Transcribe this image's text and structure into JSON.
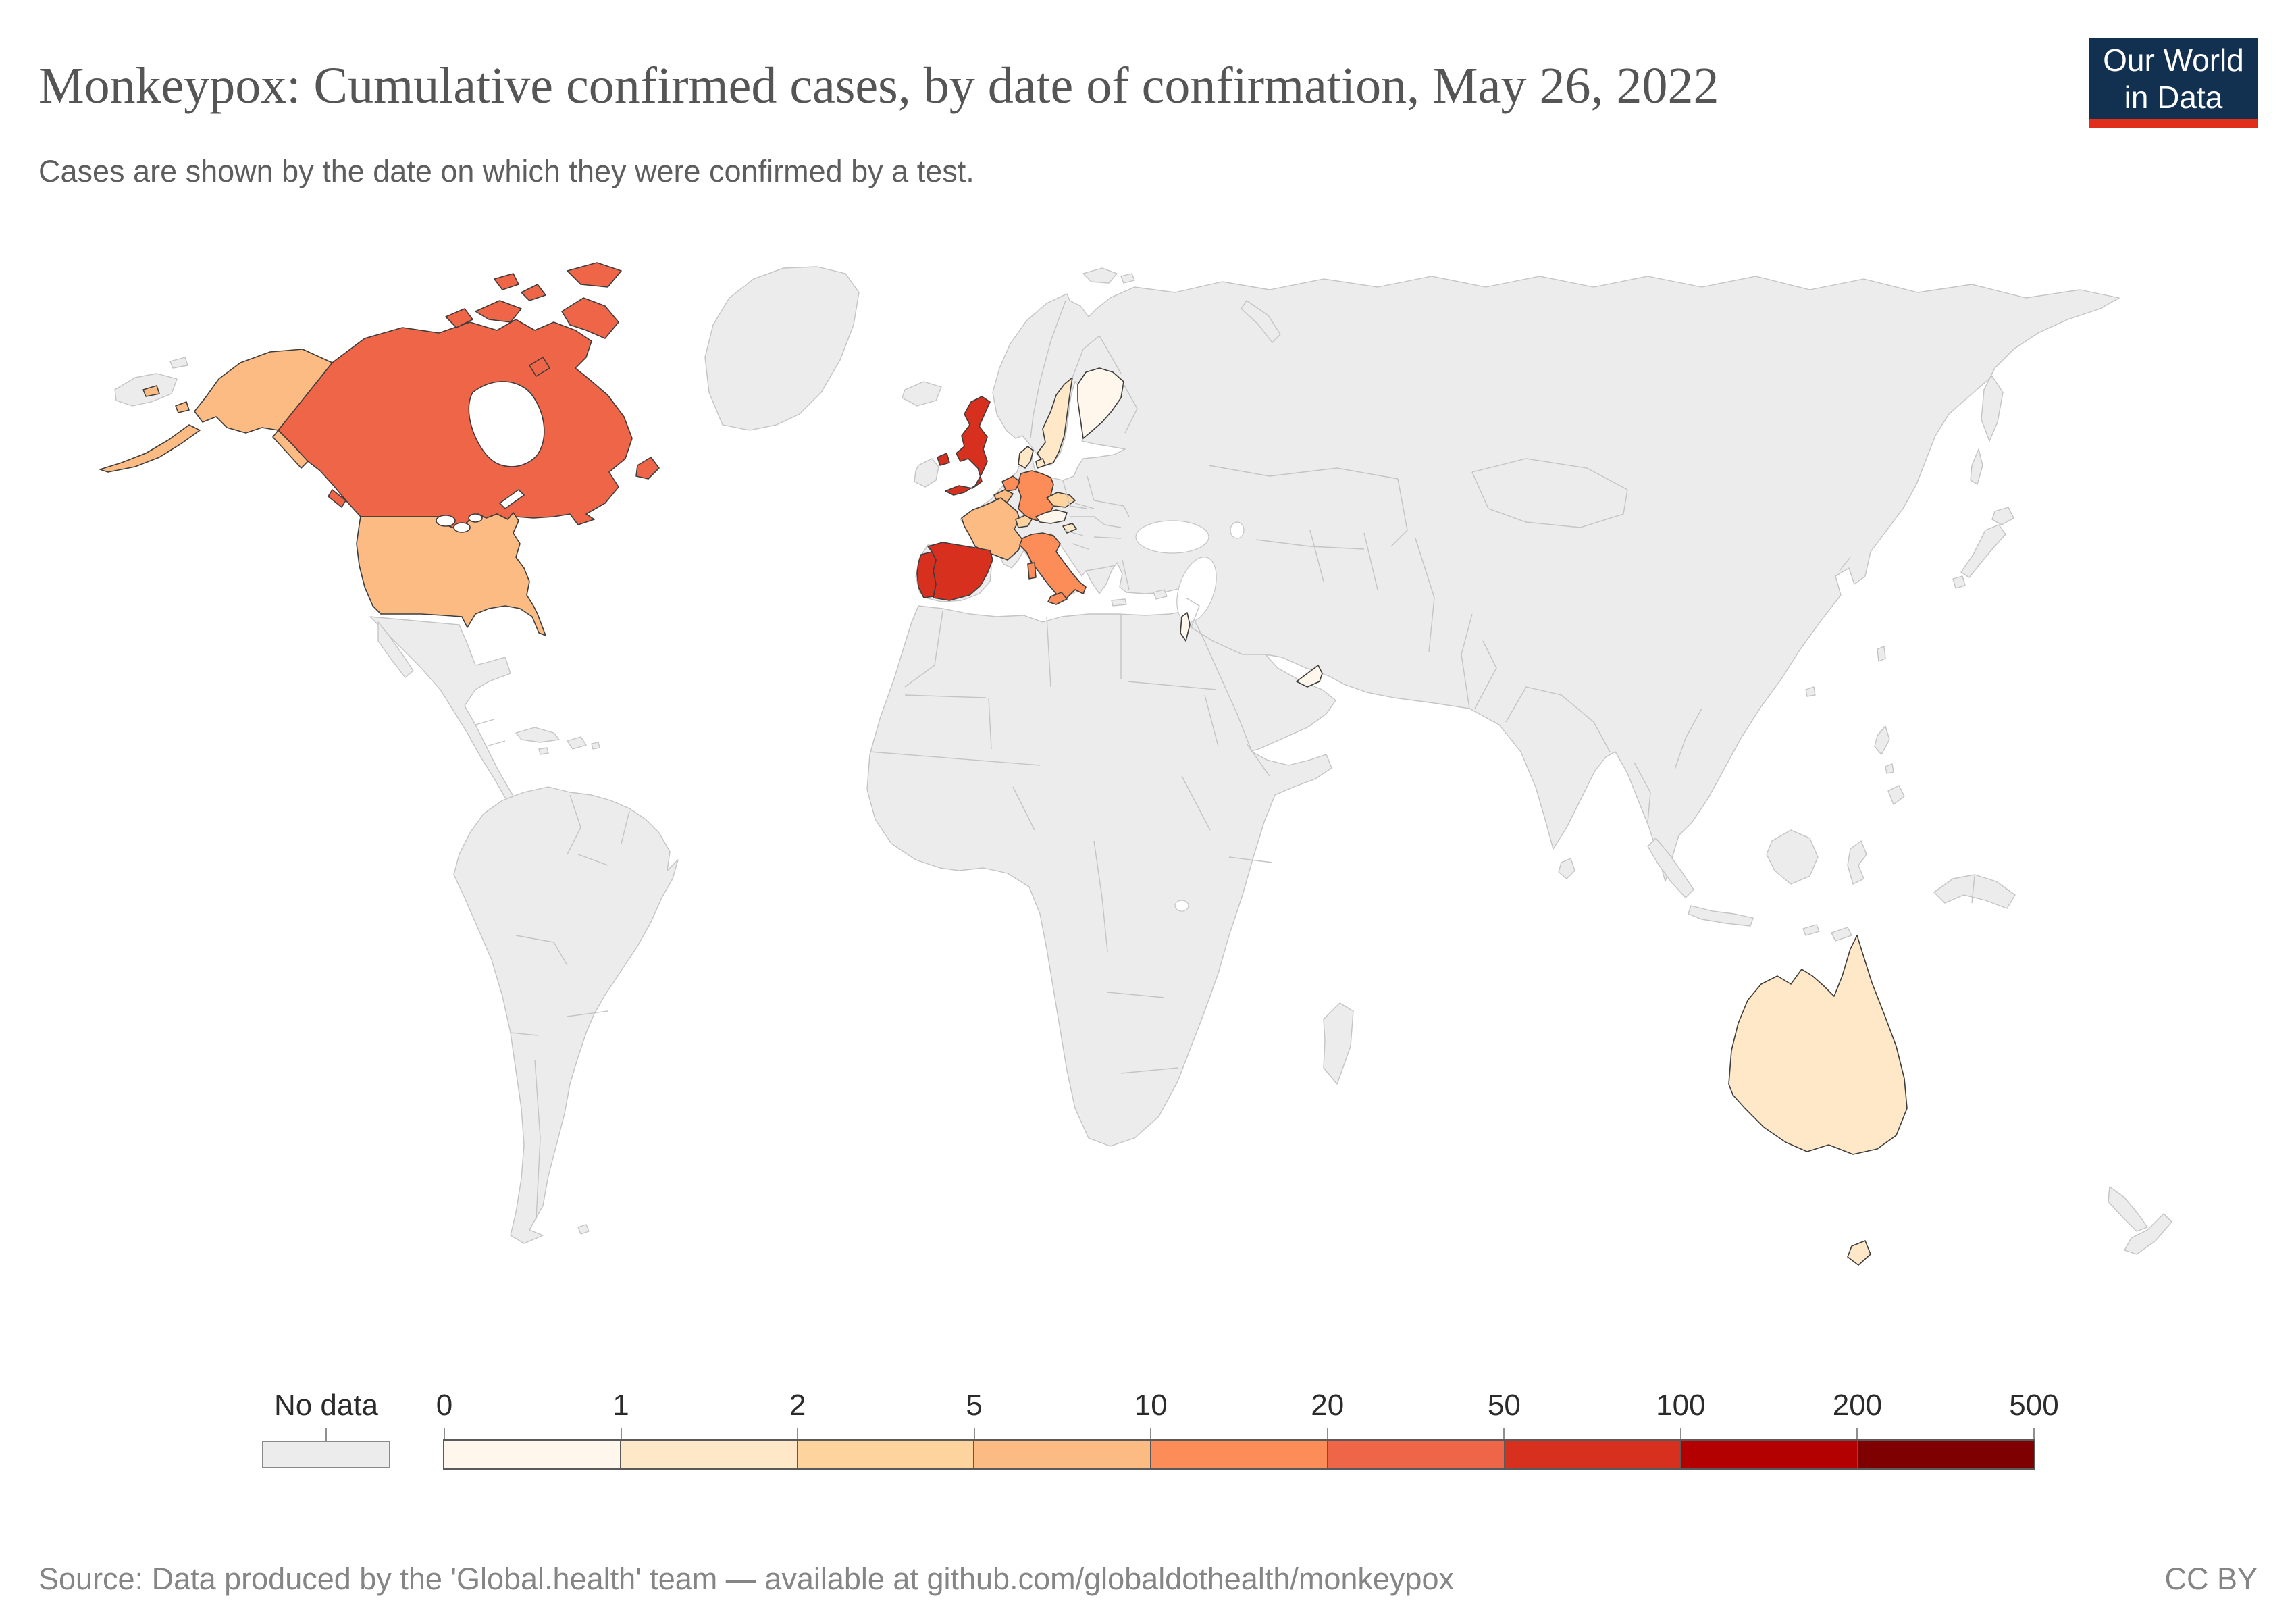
{
  "header": {
    "title": "Monkeypox: Cumulative confirmed cases, by date of confirmation, May 26, 2022",
    "subtitle": "Cases are shown by the date on which they were confirmed by a test.",
    "logo": {
      "line1": "Our World",
      "line2": "in Data",
      "bg_color": "#12304f",
      "accent_color": "#e0301c"
    }
  },
  "legend": {
    "no_data_label": "No data",
    "no_data_color": "#ececec",
    "tick_labels": [
      "0",
      "1",
      "2",
      "5",
      "10",
      "20",
      "50",
      "100",
      "200",
      "500"
    ],
    "colors": [
      "#fff7ec",
      "#fee8c8",
      "#fdd49e",
      "#fdbb84",
      "#fc8d59",
      "#ef6548",
      "#d7301f",
      "#b30000",
      "#7f0000"
    ]
  },
  "map": {
    "ocean_color": "#ffffff",
    "no_data_fill": "#ececec",
    "no_data_border": "#c4c4c4",
    "data_border": "#3d3d3d",
    "countries": [
      {
        "id": "canada",
        "name": "Canada",
        "legend_bucket": "20-50",
        "color": "#ef6548"
      },
      {
        "id": "usa",
        "name": "United States",
        "legend_bucket": "5-10",
        "color": "#fdbb84"
      },
      {
        "id": "uk",
        "name": "United Kingdom",
        "legend_bucket": "50-100",
        "color": "#d7301f"
      },
      {
        "id": "spain",
        "name": "Spain",
        "legend_bucket": "50-100",
        "color": "#d7301f"
      },
      {
        "id": "portugal",
        "name": "Portugal",
        "legend_bucket": "50-100",
        "color": "#d7301f"
      },
      {
        "id": "france",
        "name": "France",
        "legend_bucket": "5-10",
        "color": "#fdbb84"
      },
      {
        "id": "belgium",
        "name": "Belgium",
        "legend_bucket": "5-10",
        "color": "#fdbb84"
      },
      {
        "id": "netherlands",
        "name": "Netherlands",
        "legend_bucket": "10-20",
        "color": "#fc8d59"
      },
      {
        "id": "germany",
        "name": "Germany",
        "legend_bucket": "10-20",
        "color": "#fc8d59"
      },
      {
        "id": "switzerland",
        "name": "Switzerland",
        "legend_bucket": "2-5",
        "color": "#fdd49e"
      },
      {
        "id": "czechia",
        "name": "Czechia",
        "legend_bucket": "2-5",
        "color": "#fdd49e"
      },
      {
        "id": "austria",
        "name": "Austria",
        "legend_bucket": "0-1",
        "color": "#fff7ec"
      },
      {
        "id": "slovenia",
        "name": "Slovenia",
        "legend_bucket": "1-2",
        "color": "#fee8c8"
      },
      {
        "id": "italy",
        "name": "Italy",
        "legend_bucket": "10-20",
        "color": "#fc8d59"
      },
      {
        "id": "denmark",
        "name": "Denmark",
        "legend_bucket": "1-2",
        "color": "#fee8c8"
      },
      {
        "id": "sweden",
        "name": "Sweden",
        "legend_bucket": "1-2",
        "color": "#fee8c8"
      },
      {
        "id": "finland",
        "name": "Finland",
        "legend_bucket": "0-1",
        "color": "#fff7ec"
      },
      {
        "id": "israel",
        "name": "Israel",
        "legend_bucket": "0-1",
        "color": "#fff7ec"
      },
      {
        "id": "uae",
        "name": "United Arab Emirates",
        "legend_bucket": "0-1",
        "color": "#fff7ec"
      },
      {
        "id": "australia",
        "name": "Australia",
        "legend_bucket": "1-2",
        "color": "#fee8c8"
      }
    ]
  },
  "footer": {
    "source": "Source: Data produced by the 'Global.health' team — available at github.com/globaldothealth/monkeypox",
    "license": "CC BY"
  }
}
